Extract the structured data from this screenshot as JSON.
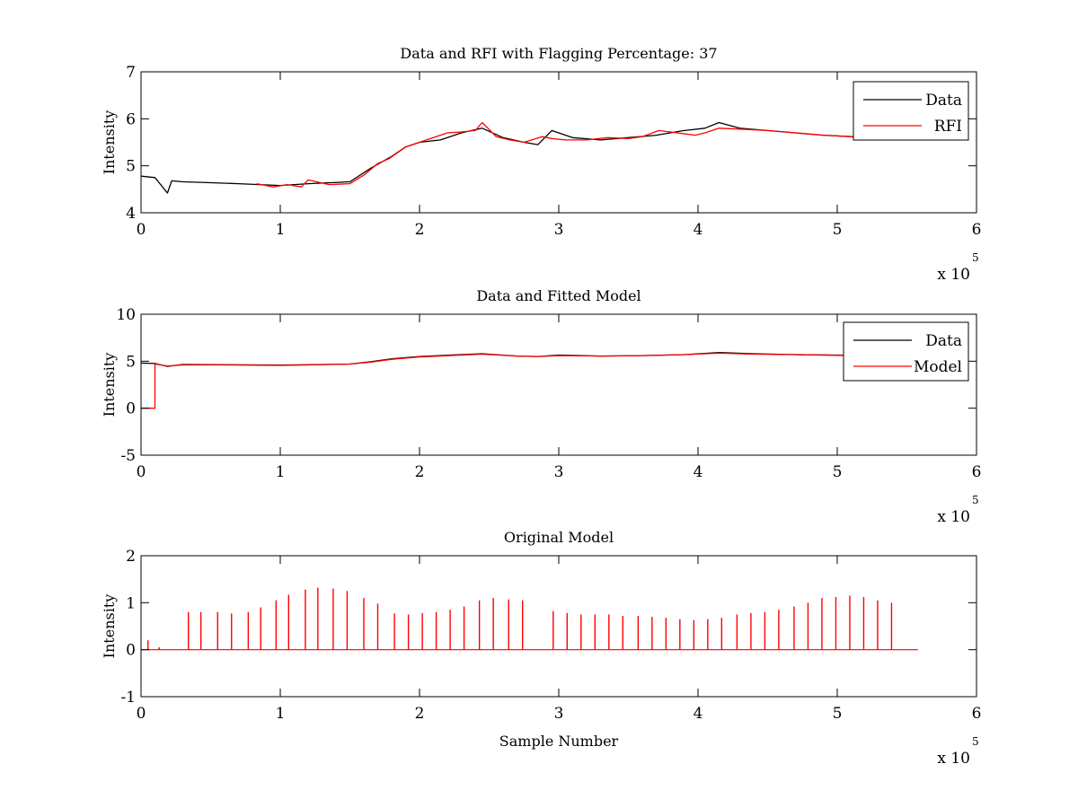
{
  "chart_data": [
    {
      "type": "line",
      "title": "Data and RFI with Flagging Percentage: 37",
      "xlabel": "",
      "ylabel": "Intensity",
      "xlim": [
        0,
        6
      ],
      "ylim": [
        4,
        7
      ],
      "x_multiplier_label": "x 10",
      "x_multiplier_exp": "5",
      "xticks": [
        "0",
        "1",
        "2",
        "3",
        "4",
        "5",
        "6"
      ],
      "yticks": [
        "4",
        "5",
        "6",
        "7"
      ],
      "legend_position": "top-right",
      "series": [
        {
          "name": "Data",
          "color": "#000000",
          "x": [
            0,
            0.1,
            0.19,
            0.22,
            0.3,
            0.5,
            0.7,
            0.85,
            1.0,
            1.2,
            1.5,
            1.65,
            1.8,
            1.9,
            2.0,
            2.15,
            2.3,
            2.45,
            2.6,
            2.75,
            2.85,
            2.95,
            3.1,
            3.3,
            3.5,
            3.7,
            3.9,
            4.05,
            4.15,
            4.3,
            4.5,
            4.7,
            4.9,
            5.1,
            5.3,
            5.5,
            5.58
          ],
          "y": [
            4.78,
            4.75,
            4.42,
            4.68,
            4.66,
            4.64,
            4.62,
            4.6,
            4.58,
            4.62,
            4.66,
            4.95,
            5.2,
            5.4,
            5.5,
            5.55,
            5.7,
            5.8,
            5.6,
            5.5,
            5.45,
            5.75,
            5.6,
            5.55,
            5.6,
            5.65,
            5.75,
            5.8,
            5.92,
            5.8,
            5.75,
            5.7,
            5.65,
            5.62,
            5.6,
            5.62,
            5.62
          ]
        },
        {
          "name": "RFI",
          "color": "#ff0000",
          "x": [
            0.83,
            0.95,
            1.05,
            1.15,
            1.2,
            1.35,
            1.5,
            1.6,
            1.7,
            1.78,
            1.9,
            2.0,
            2.1,
            2.2,
            2.3,
            2.4,
            2.45,
            2.55,
            2.65,
            2.75,
            2.88,
            2.95,
            3.05,
            3.2,
            3.35,
            3.5,
            3.6,
            3.72,
            3.85,
            3.98,
            4.05,
            4.15,
            4.3,
            4.5,
            4.7,
            4.9,
            5.1,
            5.3,
            5.5,
            5.58
          ],
          "y": [
            4.62,
            4.55,
            4.6,
            4.55,
            4.7,
            4.6,
            4.62,
            4.8,
            5.05,
            5.15,
            5.4,
            5.5,
            5.6,
            5.7,
            5.72,
            5.75,
            5.92,
            5.62,
            5.55,
            5.5,
            5.62,
            5.58,
            5.55,
            5.55,
            5.6,
            5.58,
            5.62,
            5.75,
            5.7,
            5.65,
            5.7,
            5.8,
            5.78,
            5.75,
            5.7,
            5.65,
            5.62,
            5.6,
            5.62,
            5.62
          ]
        }
      ]
    },
    {
      "type": "line",
      "title": "Data and Fitted Model",
      "xlabel": "",
      "ylabel": "Intensity",
      "xlim": [
        0,
        6
      ],
      "ylim": [
        -5,
        10
      ],
      "x_multiplier_label": "x 10",
      "x_multiplier_exp": "5",
      "xticks": [
        "0",
        "1",
        "2",
        "3",
        "4",
        "5",
        "6"
      ],
      "yticks": [
        "-5",
        "0",
        "5",
        "10"
      ],
      "legend_position": "top-right",
      "series": [
        {
          "name": "Data",
          "color": "#000000",
          "x": [
            0,
            0.1,
            0.19,
            0.3,
            0.6,
            1.0,
            1.2,
            1.5,
            1.65,
            1.8,
            2.0,
            2.3,
            2.45,
            2.7,
            2.85,
            3.0,
            3.3,
            3.6,
            3.9,
            4.15,
            4.4,
            4.7,
            5.0,
            5.3,
            5.58
          ],
          "y": [
            4.8,
            4.75,
            4.45,
            4.65,
            4.62,
            4.58,
            4.62,
            4.7,
            4.95,
            5.25,
            5.5,
            5.7,
            5.8,
            5.55,
            5.5,
            5.65,
            5.55,
            5.6,
            5.7,
            5.92,
            5.8,
            5.7,
            5.65,
            5.6,
            5.62
          ]
        },
        {
          "name": "Model",
          "color": "#ff0000",
          "x": [
            0,
            0.1,
            0.1,
            0.19,
            0.3,
            0.6,
            1.0,
            1.2,
            1.5,
            1.65,
            1.8,
            2.0,
            2.3,
            2.45,
            2.7,
            2.85,
            3.0,
            3.3,
            3.6,
            3.9,
            4.15,
            4.4,
            4.7,
            5.0,
            5.3,
            5.58
          ],
          "y": [
            0,
            0,
            4.7,
            4.5,
            4.6,
            4.6,
            4.55,
            4.6,
            4.7,
            4.9,
            5.2,
            5.45,
            5.65,
            5.75,
            5.55,
            5.5,
            5.6,
            5.55,
            5.6,
            5.7,
            5.85,
            5.75,
            5.7,
            5.62,
            5.6,
            5.62
          ]
        }
      ]
    },
    {
      "type": "line",
      "title": "Original Model",
      "xlabel": "Sample Number",
      "ylabel": "Intensity",
      "xlim": [
        0,
        6
      ],
      "ylim": [
        -1,
        2
      ],
      "x_multiplier_label": "x 10",
      "x_multiplier_exp": "5",
      "xticks": [
        "0",
        "1",
        "2",
        "3",
        "4",
        "5",
        "6"
      ],
      "yticks": [
        "-1",
        "0",
        "1",
        "2"
      ],
      "legend_position": "none",
      "baseline_x_range": [
        0,
        5.58
      ],
      "series": [
        {
          "name": "",
          "color": "#ff0000",
          "spike_x": [
            0.05,
            0.13,
            0.34,
            0.43,
            0.55,
            0.65,
            0.77,
            0.86,
            0.97,
            1.06,
            1.18,
            1.27,
            1.38,
            1.48,
            1.6,
            1.7,
            1.82,
            1.92,
            2.02,
            2.12,
            2.22,
            2.32,
            2.43,
            2.53,
            2.64,
            2.74,
            2.96,
            3.06,
            3.16,
            3.26,
            3.36,
            3.46,
            3.57,
            3.67,
            3.77,
            3.87,
            3.97,
            4.07,
            4.17,
            4.28,
            4.38,
            4.48,
            4.58,
            4.69,
            4.79,
            4.89,
            4.99,
            5.09,
            5.19,
            5.29,
            5.39
          ],
          "spike_y": [
            0.2,
            0.05,
            0.8,
            0.8,
            0.8,
            0.77,
            0.8,
            0.9,
            1.05,
            1.17,
            1.28,
            1.32,
            1.3,
            1.25,
            1.1,
            0.98,
            0.77,
            0.75,
            0.78,
            0.8,
            0.85,
            0.92,
            1.05,
            1.1,
            1.07,
            1.05,
            0.82,
            0.78,
            0.75,
            0.75,
            0.75,
            0.72,
            0.72,
            0.7,
            0.68,
            0.65,
            0.63,
            0.65,
            0.68,
            0.75,
            0.78,
            0.8,
            0.85,
            0.92,
            1.0,
            1.1,
            1.12,
            1.15,
            1.12,
            1.05,
            1.0
          ]
        }
      ]
    }
  ]
}
